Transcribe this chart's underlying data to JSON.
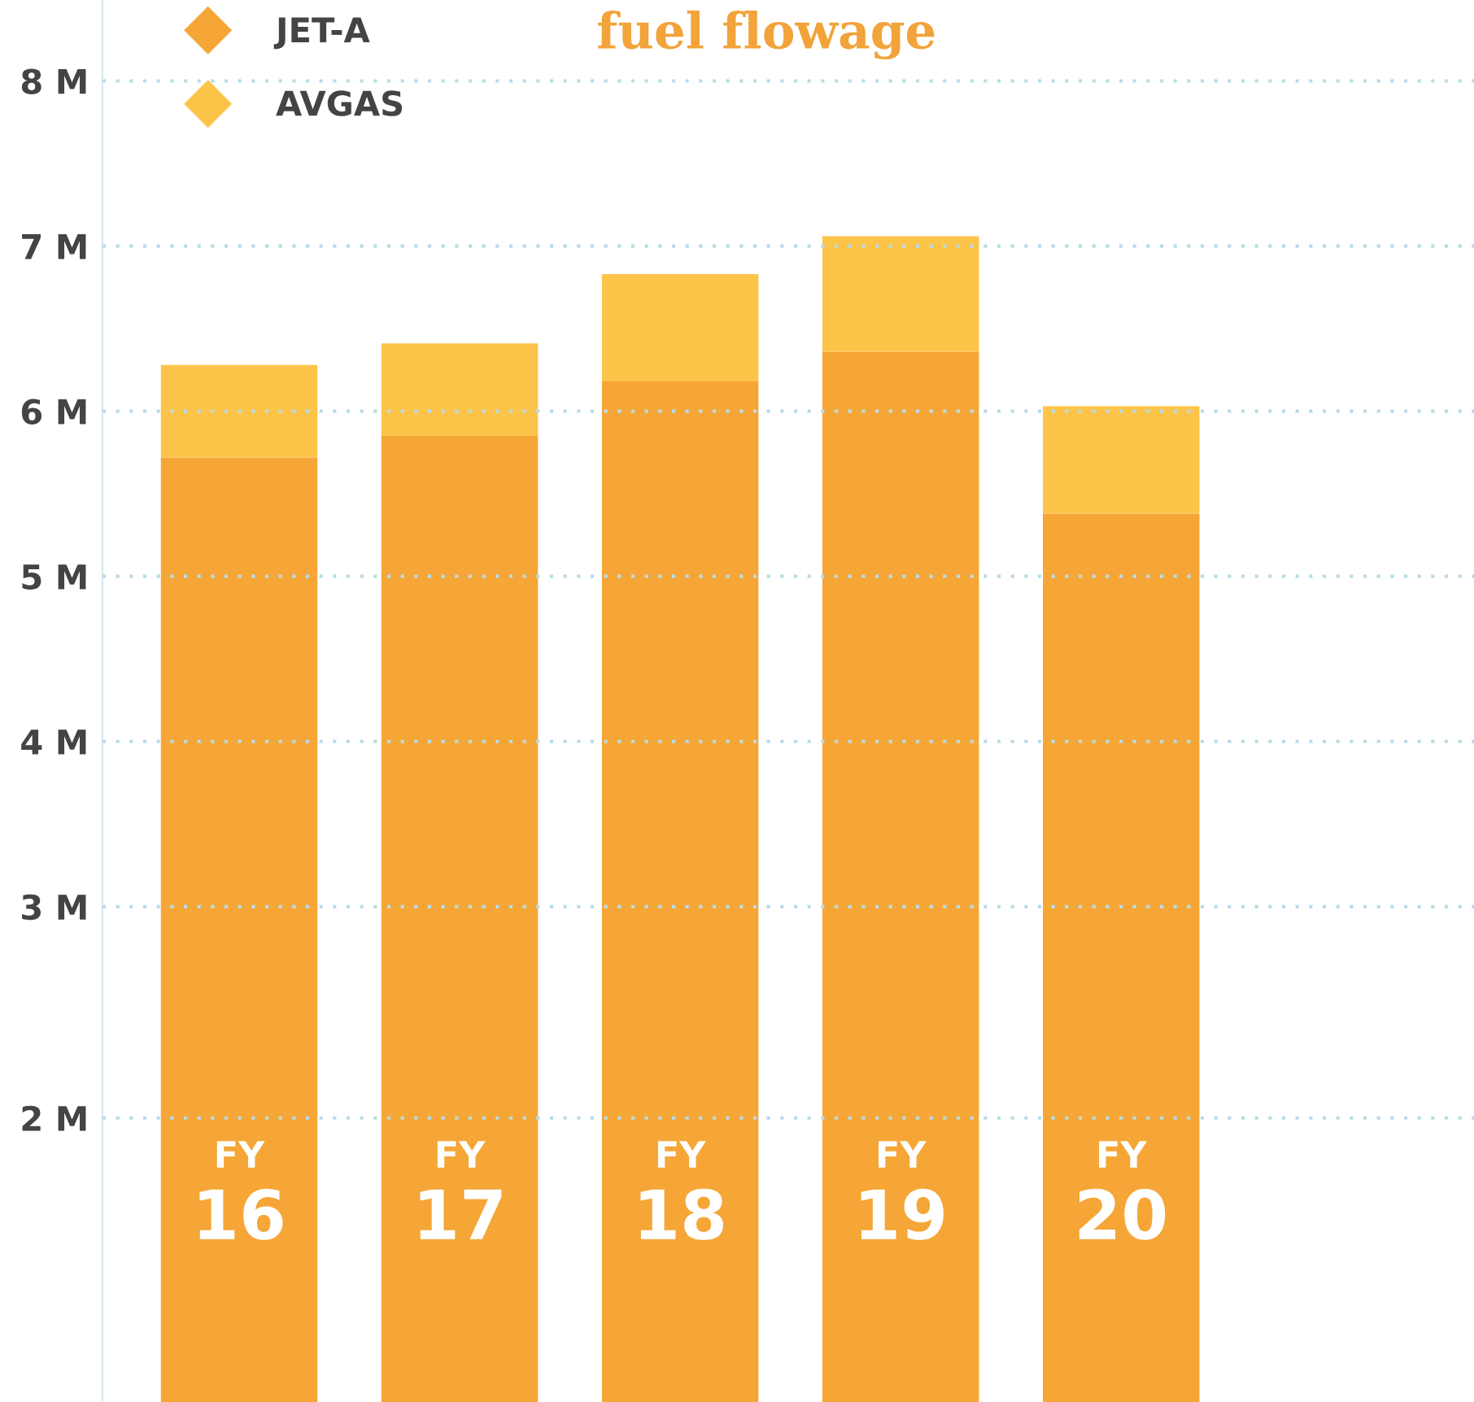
{
  "chart_data": {
    "type": "bar",
    "title": "fuel flowage",
    "stacked": true,
    "categories": [
      "FY\n16",
      "FY\n17",
      "FY\n18",
      "FY\n19",
      "FY\n20"
    ],
    "series": [
      {
        "name": "JET-A",
        "color": "#f5a636",
        "values": [
          5.72,
          5.85,
          6.18,
          6.36,
          5.38
        ]
      },
      {
        "name": "AVGAS",
        "color": "#fdc44a",
        "values": [
          0.56,
          0.56,
          0.65,
          0.7,
          0.65
        ]
      }
    ],
    "ylim": [
      0,
      8.49
    ],
    "yticks": [
      {
        "value": 1.72,
        "label": "2 M"
      },
      {
        "value": 3,
        "label": "3 M"
      },
      {
        "value": 4,
        "label": "4 M"
      },
      {
        "value": 5,
        "label": "5 M"
      },
      {
        "value": 6,
        "label": "6 M"
      },
      {
        "value": 7,
        "label": "7 M"
      },
      {
        "value": 8,
        "label": "8 M"
      }
    ],
    "grid": "y",
    "legend": "top left"
  }
}
